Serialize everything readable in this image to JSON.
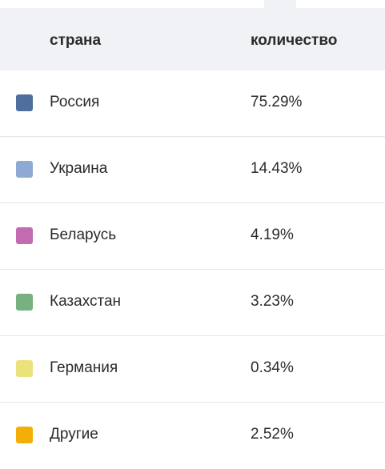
{
  "table": {
    "header": [
      "страна",
      "количество"
    ],
    "rows": [
      {
        "name": "Россия",
        "value": "75.29%",
        "color": "#4f6e9e"
      },
      {
        "name": "Украина",
        "value": "14.43%",
        "color": "#8eaad4"
      },
      {
        "name": "Беларусь",
        "value": "4.19%",
        "color": "#c26bb0"
      },
      {
        "name": "Казахстан",
        "value": "3.23%",
        "color": "#76b17f"
      },
      {
        "name": "Германия",
        "value": "0.34%",
        "color": "#ebe27c"
      },
      {
        "name": "Другие",
        "value": "2.52%",
        "color": "#f4ae08"
      }
    ]
  }
}
